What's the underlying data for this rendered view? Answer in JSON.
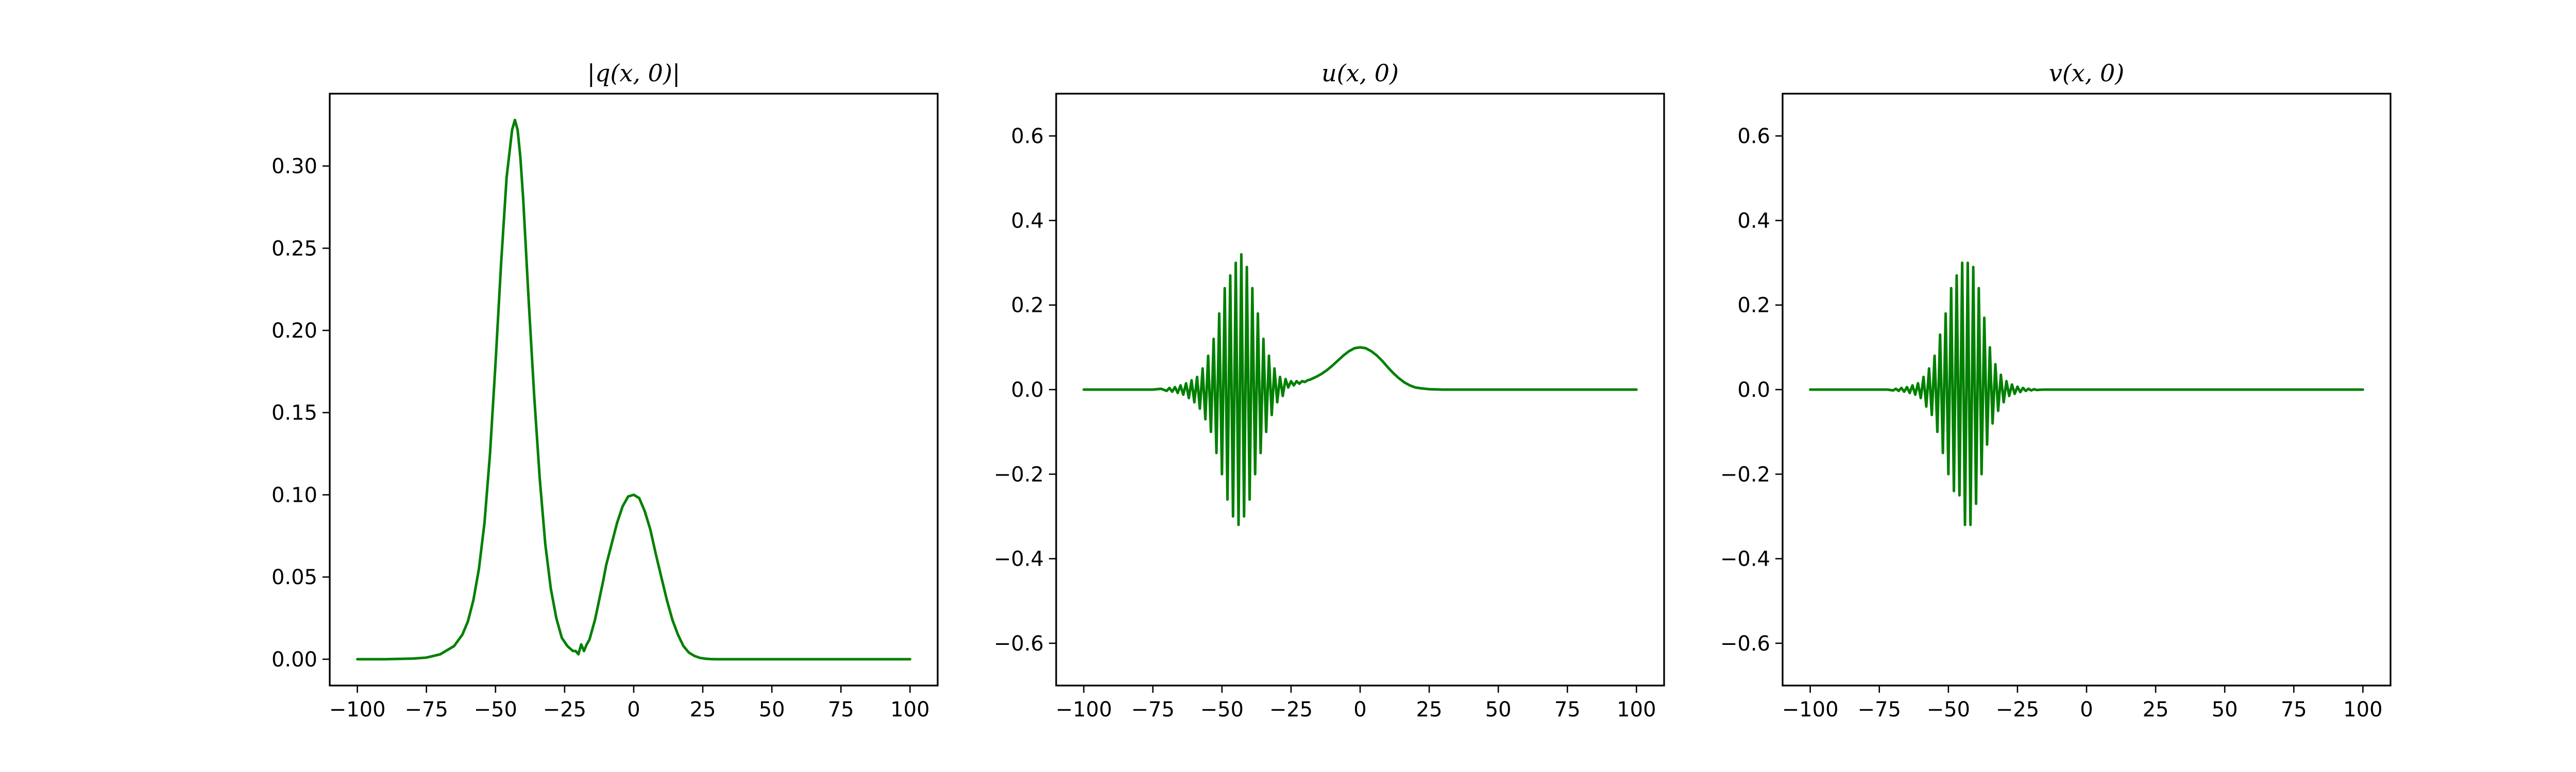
{
  "chart_data": [
    {
      "type": "line",
      "title": "|q(x, 0)|",
      "xlabel": "",
      "ylabel": "",
      "xlim": [
        -110,
        110
      ],
      "ylim": [
        -0.016,
        0.344
      ],
      "xticks": [
        -100,
        -75,
        -50,
        -25,
        0,
        25,
        50,
        75,
        100
      ],
      "xtick_labels": [
        "−100",
        "−75",
        "−50",
        "−25",
        "0",
        "25",
        "50",
        "75",
        "100"
      ],
      "yticks": [
        0.0,
        0.05,
        0.1,
        0.15,
        0.2,
        0.25,
        0.3
      ],
      "ytick_labels": [
        "0.00",
        "0.05",
        "0.10",
        "0.15",
        "0.20",
        "0.25",
        "0.30"
      ],
      "grid": false,
      "color": "#008000",
      "series": [
        {
          "x": [
            -100,
            -90,
            -80,
            -75,
            -70,
            -65,
            -62,
            -60,
            -58,
            -56,
            -54,
            -52,
            -50,
            -48,
            -46,
            -44,
            -43,
            -42,
            -41,
            -40,
            -38,
            -36,
            -34,
            -32,
            -30,
            -28,
            -26,
            -24,
            -22,
            -21,
            -20,
            -19,
            -18,
            -17,
            -16,
            -15,
            -14,
            -13,
            -12,
            -11,
            -10,
            -8,
            -6,
            -4,
            -2,
            0,
            2,
            4,
            6,
            8,
            10,
            12,
            14,
            16,
            18,
            20,
            22,
            24,
            26,
            28,
            30,
            35,
            40,
            50,
            60,
            75,
            90,
            100
          ],
          "y": [
            0.0,
            0.0,
            0.0004,
            0.001,
            0.003,
            0.008,
            0.015,
            0.023,
            0.036,
            0.055,
            0.083,
            0.125,
            0.18,
            0.24,
            0.293,
            0.322,
            0.328,
            0.322,
            0.305,
            0.28,
            0.218,
            0.16,
            0.11,
            0.07,
            0.043,
            0.025,
            0.013,
            0.008,
            0.005,
            0.005,
            0.003,
            0.009,
            0.005,
            0.009,
            0.012,
            0.018,
            0.024,
            0.032,
            0.04,
            0.048,
            0.057,
            0.07,
            0.083,
            0.093,
            0.099,
            0.1,
            0.098,
            0.09,
            0.079,
            0.064,
            0.05,
            0.036,
            0.024,
            0.015,
            0.008,
            0.004,
            0.002,
            0.0008,
            0.0003,
            0.0001,
            0.0,
            0.0,
            0.0,
            0.0,
            0.0,
            0.0,
            0.0,
            0.0
          ]
        }
      ]
    },
    {
      "type": "line",
      "title": "u(x, 0)",
      "xlabel": "",
      "ylabel": "",
      "xlim": [
        -110,
        110
      ],
      "ylim": [
        -0.7,
        0.7
      ],
      "xticks": [
        -100,
        -75,
        -50,
        -25,
        0,
        25,
        50,
        75,
        100
      ],
      "xtick_labels": [
        "−100",
        "−75",
        "−50",
        "−25",
        "0",
        "25",
        "50",
        "75",
        "100"
      ],
      "yticks": [
        -0.6,
        -0.4,
        -0.2,
        0.0,
        0.2,
        0.4,
        0.6
      ],
      "ytick_labels": [
        "−0.6",
        "−0.4",
        "−0.2",
        "0.0",
        "0.2",
        "0.4",
        "0.6"
      ],
      "grid": false,
      "color": "#008000",
      "series": [
        {
          "x": [
            -100,
            -80,
            -75,
            -72,
            -70,
            -69,
            -68,
            -67,
            -66,
            -65,
            -64,
            -63,
            -62,
            -61,
            -60,
            -59,
            -58,
            -57,
            -56,
            -55,
            -54,
            -53,
            -52,
            -51,
            -50,
            -49,
            -48,
            -47,
            -46,
            -45,
            -44,
            -43,
            -42,
            -41,
            -40,
            -39,
            -38,
            -37,
            -36,
            -35,
            -34,
            -33,
            -32,
            -31,
            -30,
            -29,
            -28,
            -27,
            -26,
            -25,
            -24,
            -23,
            -22,
            -21,
            -20,
            -19,
            -18,
            -16,
            -14,
            -12,
            -10,
            -8,
            -6,
            -4,
            -2,
            0,
            2,
            4,
            6,
            8,
            10,
            12,
            14,
            16,
            18,
            20,
            22,
            25,
            30,
            40,
            60,
            80,
            100
          ],
          "y": [
            0.0,
            0.0,
            0.0,
            0.002,
            -0.003,
            0.004,
            -0.005,
            0.006,
            -0.008,
            0.01,
            -0.012,
            0.015,
            -0.02,
            0.022,
            -0.03,
            0.03,
            -0.045,
            0.05,
            -0.07,
            0.08,
            -0.1,
            0.12,
            -0.15,
            0.18,
            -0.2,
            0.24,
            -0.26,
            0.27,
            -0.3,
            0.3,
            -0.32,
            0.32,
            -0.3,
            0.29,
            -0.26,
            0.24,
            -0.2,
            0.18,
            -0.15,
            0.12,
            -0.1,
            0.08,
            -0.06,
            0.05,
            -0.03,
            0.03,
            -0.015,
            0.025,
            0.005,
            0.02,
            0.01,
            0.02,
            0.014,
            0.02,
            0.018,
            0.022,
            0.024,
            0.03,
            0.037,
            0.046,
            0.057,
            0.069,
            0.081,
            0.091,
            0.098,
            0.1,
            0.098,
            0.091,
            0.081,
            0.068,
            0.053,
            0.039,
            0.027,
            0.017,
            0.01,
            0.005,
            0.003,
            0.001,
            0.0,
            0.0,
            0.0,
            0.0,
            0.0
          ]
        }
      ]
    },
    {
      "type": "line",
      "title": "v(x, 0)",
      "xlabel": "",
      "ylabel": "",
      "xlim": [
        -110,
        110
      ],
      "ylim": [
        -0.7,
        0.7
      ],
      "xticks": [
        -100,
        -75,
        -50,
        -25,
        0,
        25,
        50,
        75,
        100
      ],
      "xtick_labels": [
        "−100",
        "−75",
        "−50",
        "−25",
        "0",
        "25",
        "50",
        "75",
        "100"
      ],
      "yticks": [
        -0.6,
        -0.4,
        -0.2,
        0.0,
        0.2,
        0.4,
        0.6
      ],
      "ytick_labels": [
        "−0.6",
        "−0.4",
        "−0.2",
        "0.0",
        "0.2",
        "0.4",
        "0.6"
      ],
      "grid": false,
      "color": "#008000",
      "series": [
        {
          "x": [
            -100,
            -80,
            -72,
            -70,
            -69,
            -68,
            -67,
            -66,
            -65,
            -64,
            -63,
            -62,
            -61,
            -60,
            -59,
            -58,
            -57,
            -56,
            -55,
            -54,
            -53,
            -52,
            -51,
            -50,
            -49,
            -48,
            -47,
            -46,
            -45,
            -44,
            -43,
            -42,
            -41,
            -40,
            -39,
            -38,
            -37,
            -36,
            -35,
            -34,
            -33,
            -32,
            -31,
            -30,
            -29,
            -28,
            -27,
            -26,
            -25,
            -24,
            -23,
            -22,
            -21,
            -20,
            -19,
            -18,
            -16,
            -14,
            -12,
            -10,
            -5,
            0,
            25,
            50,
            75,
            100
          ],
          "y": [
            0.0,
            0.0,
            0.0,
            -0.002,
            0.002,
            -0.003,
            0.004,
            -0.005,
            0.006,
            -0.008,
            0.01,
            -0.012,
            0.015,
            -0.02,
            0.03,
            -0.04,
            0.05,
            -0.06,
            0.08,
            -0.1,
            0.13,
            -0.15,
            0.18,
            -0.2,
            0.24,
            -0.24,
            0.27,
            -0.25,
            0.3,
            -0.32,
            0.3,
            -0.32,
            0.29,
            -0.27,
            0.24,
            -0.2,
            0.17,
            -0.13,
            0.1,
            -0.08,
            0.06,
            -0.05,
            0.035,
            -0.03,
            0.02,
            -0.015,
            0.012,
            -0.01,
            0.007,
            -0.006,
            0.004,
            -0.003,
            0.002,
            -0.002,
            0.001,
            -0.001,
            0.0,
            0.0,
            0.0,
            0.0,
            0.0,
            0.0,
            0.0,
            0.0,
            0.0,
            0.0
          ]
        }
      ]
    }
  ]
}
